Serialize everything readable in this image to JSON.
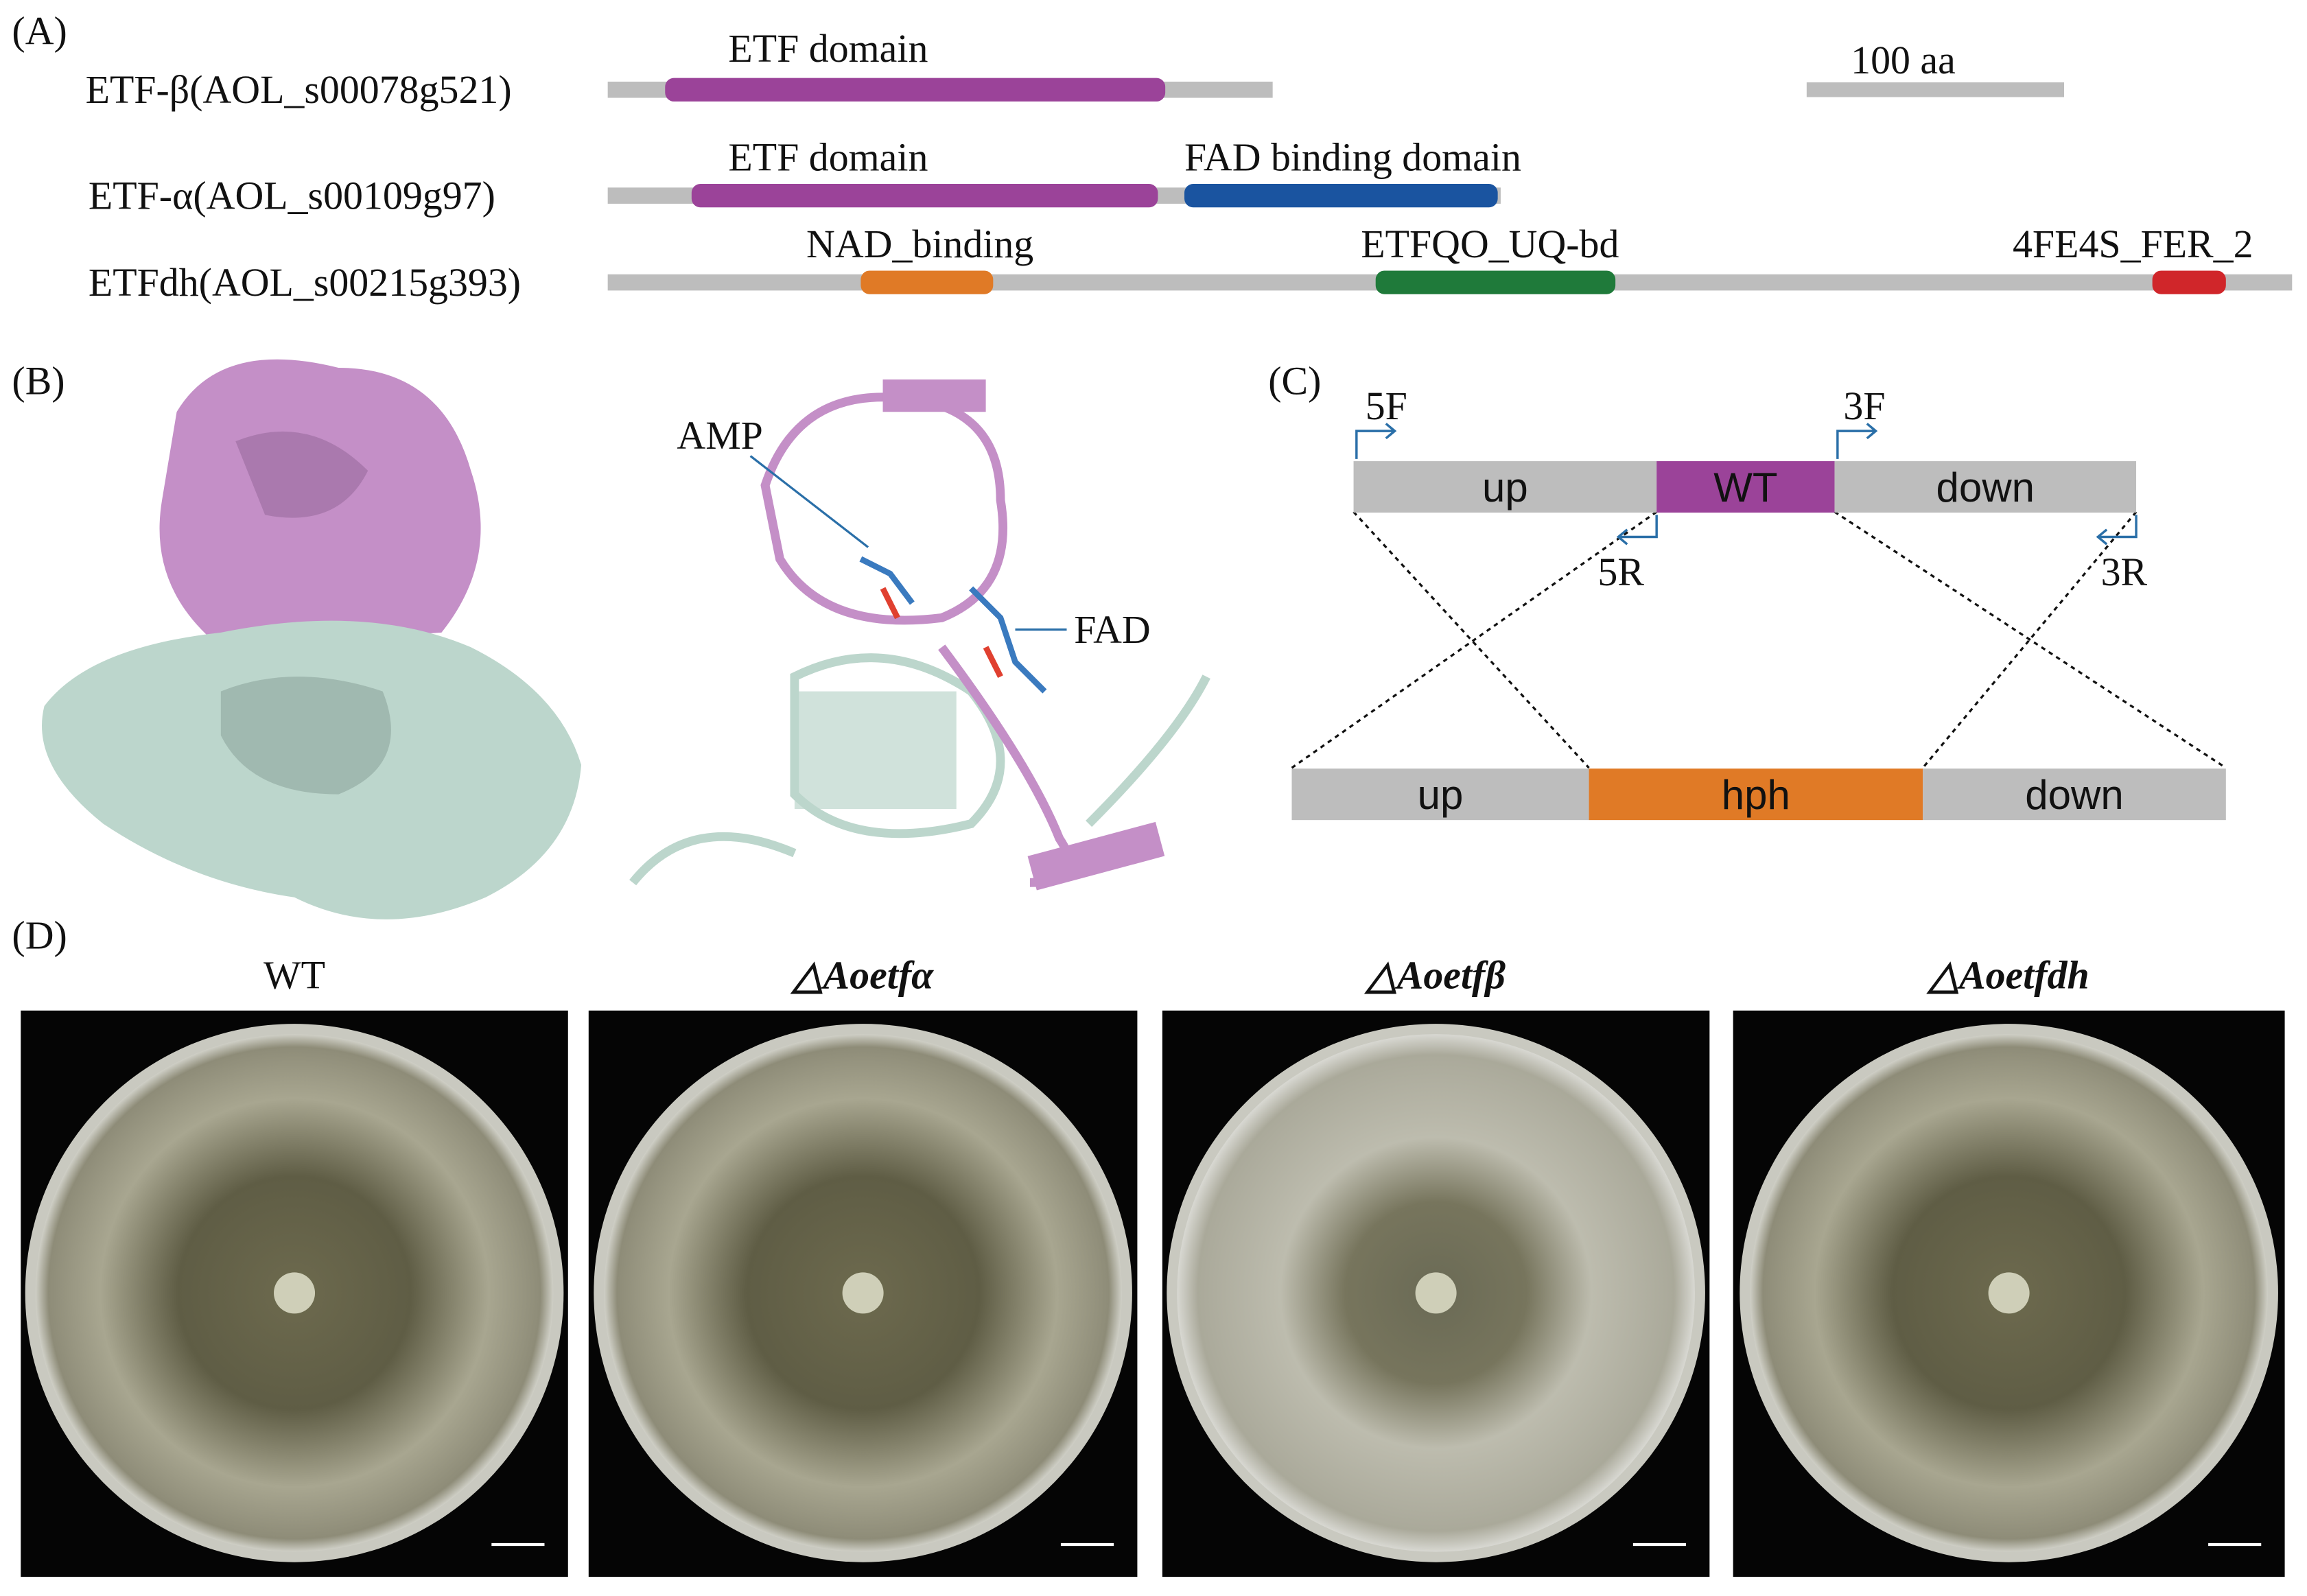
{
  "panel_a": {
    "label": "(A)",
    "scale_bar": "100 aa",
    "proteins": [
      {
        "name": "ETF-β(AOL_s00078g521)",
        "domains": [
          "ETF domain"
        ]
      },
      {
        "name": "ETF-α(AOL_s00109g97)",
        "domains": [
          "ETF domain",
          "FAD binding domain"
        ]
      },
      {
        "name": "ETFdh(AOL_s00215g393)",
        "domains": [
          "NAD_binding",
          "ETFQO_UQ-bd",
          "4FE4S_FER_2"
        ]
      }
    ]
  },
  "panel_b": {
    "label": "(B)",
    "annotations": [
      "AMP",
      "FAD"
    ]
  },
  "panel_c": {
    "label": "(C)",
    "primers": [
      "5F",
      "3F",
      "5R",
      "3R"
    ],
    "wild_type": [
      "up",
      "WT",
      "down"
    ],
    "mutant": [
      "up",
      "hph",
      "down"
    ]
  },
  "panel_d": {
    "label": "(D)",
    "strains": [
      "WT",
      "△Aoetfα",
      "△Aoetfβ",
      "△Aoetfdh"
    ]
  }
}
